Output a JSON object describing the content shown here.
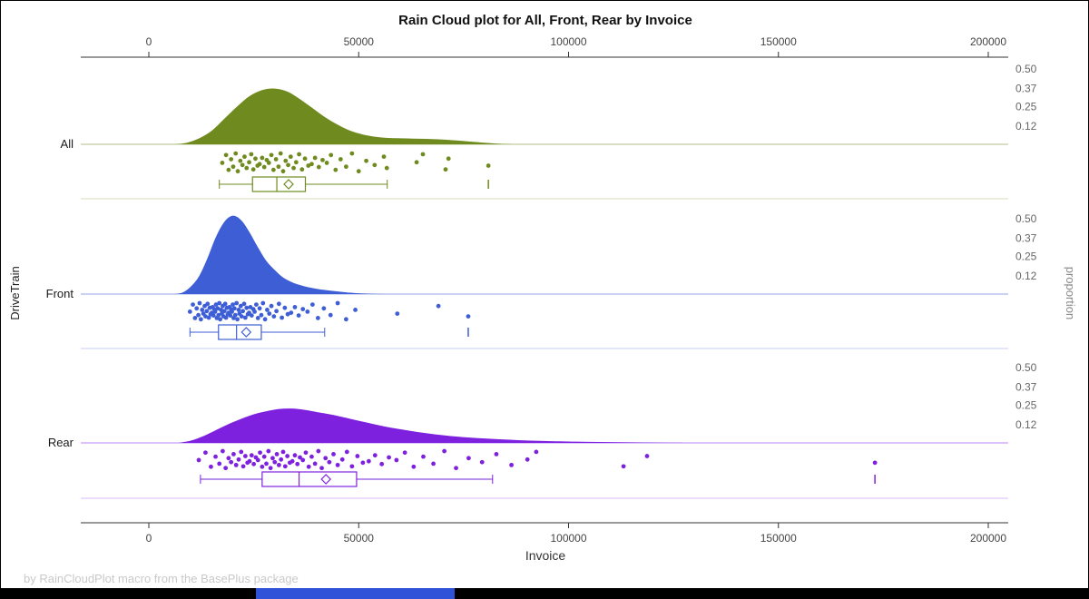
{
  "footer": "by RainCloudPlot macro from the BasePlus package",
  "chart_data": {
    "type": "raincloud",
    "title": "Rain Cloud plot for All, Front, Rear by Invoice",
    "xlabel": "Invoice",
    "ylabel": "DriveTrain",
    "y2label": "proportion",
    "xlim": [
      0,
      200000
    ],
    "x_ticks": [
      0,
      50000,
      100000,
      150000,
      200000
    ],
    "x_tick_labels": [
      "0",
      "50000",
      "100000",
      "150000",
      "200000"
    ],
    "proportion_ticks": [
      0.5,
      0.37,
      0.25,
      0.12
    ],
    "proportion_tick_labels": [
      "0.50",
      "0.37",
      "0.25",
      "0.12"
    ],
    "jitter_pattern": [
      0.52,
      0.13,
      0.87,
      0.34,
      0.71,
      0.05,
      0.94,
      0.42,
      0.63,
      0.21,
      0.78,
      0.49,
      0.09,
      0.85,
      0.31,
      0.66,
      0.58,
      0.27,
      0.73,
      0.38
    ],
    "groups": [
      {
        "name": "All",
        "color": "#6f8b1f",
        "density": [
          [
            6000,
            0
          ],
          [
            9000,
            0.01
          ],
          [
            12000,
            0.04
          ],
          [
            15000,
            0.09
          ],
          [
            18000,
            0.17
          ],
          [
            21000,
            0.25
          ],
          [
            24000,
            0.32
          ],
          [
            27000,
            0.36
          ],
          [
            30000,
            0.37
          ],
          [
            33000,
            0.35
          ],
          [
            36000,
            0.3
          ],
          [
            39000,
            0.24
          ],
          [
            42000,
            0.18
          ],
          [
            45000,
            0.13
          ],
          [
            48000,
            0.09
          ],
          [
            51000,
            0.065
          ],
          [
            54000,
            0.05
          ],
          [
            57000,
            0.042
          ],
          [
            60000,
            0.04
          ],
          [
            63000,
            0.038
          ],
          [
            66000,
            0.036
          ],
          [
            69000,
            0.033
          ],
          [
            72000,
            0.028
          ],
          [
            75000,
            0.022
          ],
          [
            78000,
            0.015
          ],
          [
            81000,
            0.008
          ],
          [
            84000,
            0.003
          ],
          [
            87000,
            0
          ]
        ],
        "box": {
          "whisker_min": 16800,
          "q1": 24700,
          "median": 30500,
          "q3": 37300,
          "whisker_max": 56800,
          "mean": 33300,
          "outliers": [
            80900
          ]
        },
        "points_x": [
          17500,
          18400,
          19000,
          19600,
          20100,
          20700,
          21200,
          21800,
          22300,
          22800,
          23300,
          23900,
          24400,
          24900,
          25400,
          25900,
          26400,
          27000,
          27500,
          28100,
          28600,
          29200,
          29700,
          30300,
          30900,
          31400,
          32000,
          32600,
          33200,
          33800,
          34500,
          35100,
          35800,
          36500,
          37200,
          38000,
          38800,
          39600,
          40500,
          41400,
          42400,
          43400,
          44500,
          45700,
          47000,
          48400,
          50000,
          51800,
          53800,
          56000,
          56700,
          63800,
          65300,
          70700,
          71400,
          80900
        ]
      },
      {
        "name": "Front",
        "color": "#3e5ed6",
        "density": [
          [
            6000,
            0
          ],
          [
            8000,
            0.01
          ],
          [
            10000,
            0.05
          ],
          [
            12000,
            0.12
          ],
          [
            14000,
            0.24
          ],
          [
            16000,
            0.38
          ],
          [
            18000,
            0.48
          ],
          [
            20000,
            0.52
          ],
          [
            22000,
            0.49
          ],
          [
            24000,
            0.41
          ],
          [
            26000,
            0.31
          ],
          [
            28000,
            0.22
          ],
          [
            30000,
            0.16
          ],
          [
            32000,
            0.11
          ],
          [
            34000,
            0.08
          ],
          [
            36000,
            0.06
          ],
          [
            38000,
            0.045
          ],
          [
            40000,
            0.035
          ],
          [
            42000,
            0.027
          ],
          [
            44000,
            0.02
          ],
          [
            46000,
            0.014
          ],
          [
            48000,
            0.009
          ],
          [
            50000,
            0.005
          ],
          [
            53000,
            0.002
          ],
          [
            56000,
            0
          ]
        ],
        "box": {
          "whisker_min": 9800,
          "q1": 16600,
          "median": 20900,
          "q3": 26800,
          "whisker_max": 41900,
          "mean": 23200,
          "outliers": [
            76100
          ]
        },
        "points_x": [
          9800,
          10500,
          11000,
          11400,
          11800,
          12100,
          12400,
          12700,
          13000,
          13300,
          13500,
          13800,
          14000,
          14300,
          14500,
          14700,
          15000,
          15200,
          15400,
          15600,
          15800,
          16000,
          16200,
          16400,
          16600,
          16800,
          17000,
          17200,
          17400,
          17600,
          17800,
          18000,
          18200,
          18400,
          18600,
          18800,
          19000,
          19200,
          19400,
          19600,
          19800,
          20000,
          20200,
          20400,
          20600,
          20900,
          21100,
          21400,
          21600,
          21900,
          22100,
          22400,
          22700,
          23000,
          23300,
          23600,
          23900,
          24200,
          24500,
          24900,
          25200,
          25600,
          26000,
          26400,
          26800,
          27200,
          27700,
          28200,
          28700,
          29200,
          29800,
          30400,
          31000,
          31700,
          32400,
          33100,
          33900,
          34800,
          35700,
          36700,
          37800,
          39000,
          40300,
          41700,
          43300,
          45000,
          47000,
          49200,
          59200,
          69000,
          76100
        ]
      },
      {
        "name": "Rear",
        "color": "#7e21de",
        "density": [
          [
            7000,
            0
          ],
          [
            10000,
            0.015
          ],
          [
            13000,
            0.045
          ],
          [
            16000,
            0.085
          ],
          [
            19000,
            0.125
          ],
          [
            22000,
            0.16
          ],
          [
            25000,
            0.19
          ],
          [
            28000,
            0.21
          ],
          [
            31000,
            0.225
          ],
          [
            34000,
            0.228
          ],
          [
            37000,
            0.22
          ],
          [
            40000,
            0.205
          ],
          [
            44000,
            0.185
          ],
          [
            48000,
            0.16
          ],
          [
            52000,
            0.135
          ],
          [
            56000,
            0.11
          ],
          [
            60000,
            0.09
          ],
          [
            64000,
            0.072
          ],
          [
            68000,
            0.057
          ],
          [
            72000,
            0.045
          ],
          [
            76000,
            0.036
          ],
          [
            80000,
            0.029
          ],
          [
            84000,
            0.023
          ],
          [
            88000,
            0.018
          ],
          [
            92000,
            0.014
          ],
          [
            96000,
            0.011
          ],
          [
            100000,
            0.009
          ],
          [
            105000,
            0.007
          ],
          [
            110000,
            0.005
          ],
          [
            115000,
            0.0035
          ],
          [
            120000,
            0.002
          ],
          [
            125000,
            0.001
          ],
          [
            130000,
            0
          ]
        ],
        "box": {
          "whisker_min": 12300,
          "q1": 27000,
          "median": 35800,
          "q3": 49500,
          "whisker_max": 81900,
          "mean": 42200,
          "outliers": [
            173000
          ]
        },
        "points_x": [
          11900,
          13500,
          14800,
          15900,
          16800,
          17600,
          18300,
          19000,
          19600,
          20200,
          20800,
          21400,
          22000,
          22500,
          23000,
          23500,
          24000,
          24500,
          25000,
          25500,
          26000,
          26500,
          27000,
          27500,
          28000,
          28500,
          29000,
          29500,
          30000,
          30500,
          31000,
          31500,
          32000,
          32500,
          33000,
          33600,
          34200,
          34800,
          35400,
          36000,
          36700,
          37400,
          38100,
          38800,
          39600,
          40400,
          41200,
          42100,
          43000,
          44000,
          45000,
          46100,
          47200,
          48400,
          49700,
          51000,
          52400,
          53900,
          55500,
          57200,
          59000,
          61000,
          63100,
          65400,
          67800,
          70400,
          73200,
          76200,
          79400,
          82800,
          86400,
          90200,
          92300,
          113100,
          118700,
          173000
        ]
      }
    ]
  }
}
